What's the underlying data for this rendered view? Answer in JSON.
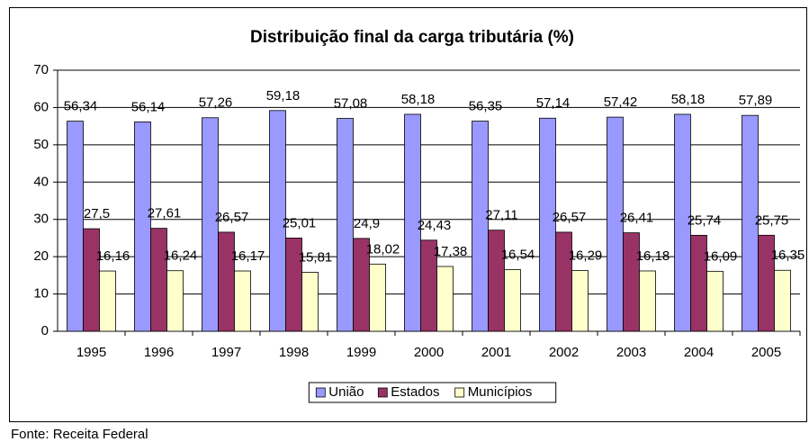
{
  "chart_data": {
    "type": "bar",
    "title": "Distribuição final da carga tributária (%)",
    "footnote": "Fonte: Receita Federal",
    "categories": [
      "1995",
      "1996",
      "1997",
      "1998",
      "1999",
      "2000",
      "2001",
      "2002",
      "2003",
      "2004",
      "2005"
    ],
    "series": [
      {
        "name": "União",
        "color": "#9999ff",
        "values": [
          56.34,
          56.14,
          57.26,
          59.18,
          57.08,
          58.18,
          56.35,
          57.14,
          57.42,
          58.18,
          57.89
        ],
        "value_labels": [
          "56,34",
          "56,14",
          "57,26",
          "59,18",
          "57,08",
          "58,18",
          "56,35",
          "57,14",
          "57,42",
          "58,18",
          "57,89"
        ]
      },
      {
        "name": "Estados",
        "color": "#993366",
        "values": [
          27.5,
          27.61,
          26.57,
          25.01,
          24.9,
          24.43,
          27.11,
          26.57,
          26.41,
          25.74,
          25.75
        ],
        "value_labels": [
          "27,5",
          "27,61",
          "26,57",
          "25,01",
          "24,9",
          "24,43",
          "27,11",
          "26,57",
          "26,41",
          "25,74",
          "25,75"
        ]
      },
      {
        "name": "Municípios",
        "color": "#ffffcc",
        "values": [
          16.16,
          16.24,
          16.17,
          15.81,
          18.02,
          17.38,
          16.54,
          16.29,
          16.18,
          16.09,
          16.35
        ],
        "value_labels": [
          "16,16",
          "16,24",
          "16,17",
          "15,81",
          "18,02",
          "17,38",
          "16,54",
          "16,29",
          "16,18",
          "16,09",
          "16,35"
        ]
      }
    ],
    "ylim": [
      0,
      70
    ],
    "yticks": [
      0,
      10,
      20,
      30,
      40,
      50,
      60,
      70
    ],
    "grid": true,
    "legend": "bottom"
  }
}
